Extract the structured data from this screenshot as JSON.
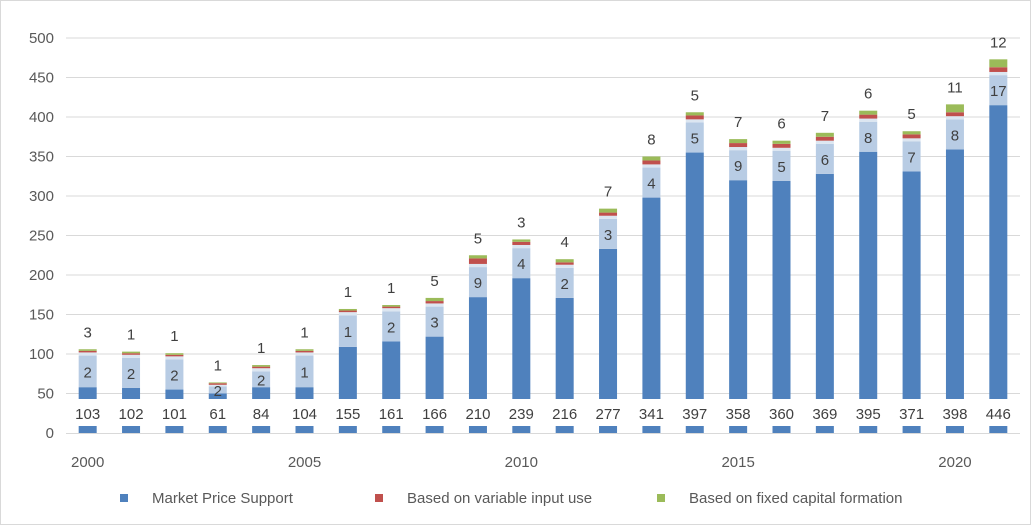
{
  "chart_data": {
    "type": "bar",
    "stacked": true,
    "title": "",
    "xlabel": "",
    "ylabel": "",
    "ylim": [
      0,
      500
    ],
    "yticks": [
      0,
      50,
      100,
      150,
      200,
      250,
      300,
      350,
      400,
      450,
      500
    ],
    "x_tick_labels": [
      "2000",
      "2005",
      "2010",
      "2015",
      "2020"
    ],
    "grid": "horizontal",
    "legend_position": "bottom",
    "categories": [
      2000,
      2001,
      2002,
      2003,
      2004,
      2005,
      2006,
      2007,
      2008,
      2009,
      2010,
      2011,
      2012,
      2013,
      2014,
      2015,
      2016,
      2017,
      2018,
      2019,
      2020,
      2021
    ],
    "series": [
      {
        "name": "Market Price Support",
        "color": "#4f81bd",
        "values": [
          58,
          57,
          55,
          50,
          58,
          58,
          109,
          116,
          122,
          172,
          196,
          171,
          233,
          298,
          355,
          320,
          319,
          328,
          356,
          331,
          359,
          415
        ]
      },
      {
        "name": "",
        "color": "#b8cce4",
        "values": [
          40,
          38,
          38,
          9,
          20,
          40,
          40,
          38,
          38,
          38,
          38,
          38,
          38,
          38,
          38,
          38,
          38,
          38,
          38,
          38,
          38,
          38
        ]
      },
      {
        "name": "",
        "color": "#dce6f1",
        "values": [
          4,
          4,
          4,
          2,
          4,
          4,
          4,
          4,
          4,
          4,
          4,
          4,
          4,
          4,
          4,
          4,
          4,
          4,
          4,
          4,
          4,
          4
        ]
      },
      {
        "name": "Based on variable input use",
        "color": "#c0504d",
        "values": [
          2,
          2,
          2,
          2,
          2,
          2,
          2,
          2,
          3,
          7,
          4,
          3,
          4,
          5,
          5,
          5,
          5,
          5,
          5,
          5,
          5,
          6
        ]
      },
      {
        "name": "Based on fixed capital formation",
        "color": "#9bbb59",
        "values": [
          2,
          2,
          2,
          1,
          2,
          2,
          2,
          2,
          4,
          4,
          3,
          4,
          5,
          5,
          4,
          5,
          4,
          5,
          5,
          4,
          10,
          10
        ]
      }
    ],
    "bottom_labels": [
      "103",
      "102",
      "101",
      "61",
      "84",
      "104",
      "155",
      "161",
      "166",
      "210",
      "239",
      "216",
      "277",
      "341",
      "397",
      "358",
      "360",
      "369",
      "395",
      "371",
      "398",
      "446"
    ],
    "segment_labels": [
      "2",
      "2",
      "2",
      "2",
      "2",
      "1",
      "1",
      "2",
      "3",
      "9",
      "4",
      "2",
      "3",
      "4",
      "5",
      "9",
      "5",
      "6",
      "8",
      "7",
      "8",
      "17"
    ],
    "top_labels": [
      "3",
      "1",
      "1",
      "1",
      "1",
      "1",
      "1",
      "1",
      "5",
      "5",
      "3",
      "4",
      "7",
      "8",
      "5",
      "7",
      "6",
      "7",
      "6",
      "5",
      "11",
      "12"
    ]
  }
}
